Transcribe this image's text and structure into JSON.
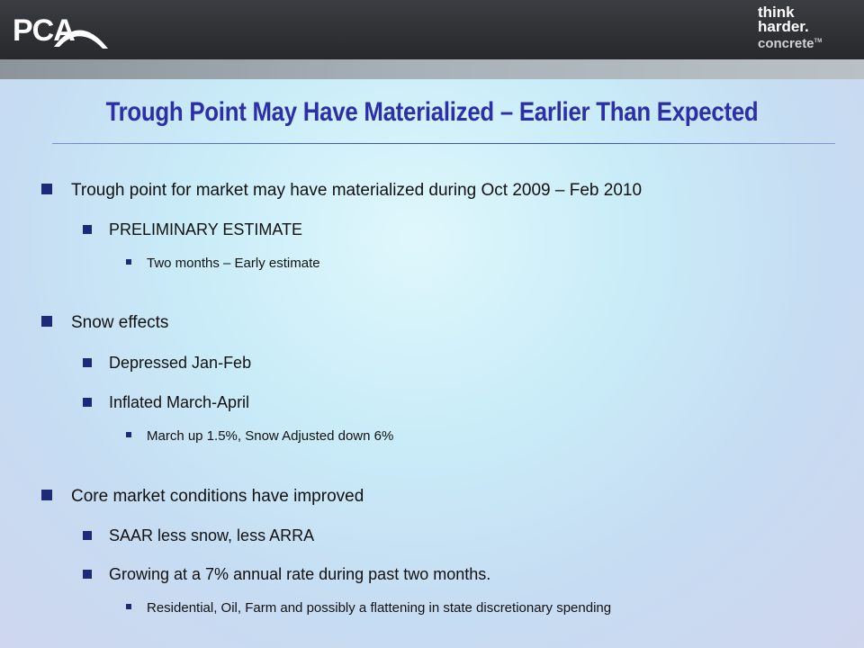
{
  "header": {
    "logo_text": "PCA",
    "tagline": [
      "think",
      "harder.",
      "concrete"
    ],
    "tagline_tm": "TM"
  },
  "slide": {
    "title": "Trough Point May Have Materialized – Earlier Than Expected",
    "bullets": [
      {
        "text": "Trough point for market may have materialized during Oct 2009 – Feb 2010"
      },
      {
        "text": "PRELIMINARY ESTIMATE"
      },
      {
        "text": "Two months – Early estimate"
      },
      {
        "text": "Snow effects"
      },
      {
        "text": "Depressed Jan-Feb"
      },
      {
        "text": "Inflated March-April"
      },
      {
        "text": "March up 1.5%, Snow Adjusted down 6%"
      },
      {
        "text": "Core market conditions have improved"
      },
      {
        "text": "SAAR less snow, less ARRA"
      },
      {
        "text": "Growing at a 7% annual rate during past two months."
      },
      {
        "text": "Residential, Oil, Farm and possibly a flattening in state discretionary spending"
      }
    ]
  },
  "colors": {
    "title": "#2c2fa6",
    "bullet": "#1d2a7a",
    "header_bg": "#2f3236"
  }
}
